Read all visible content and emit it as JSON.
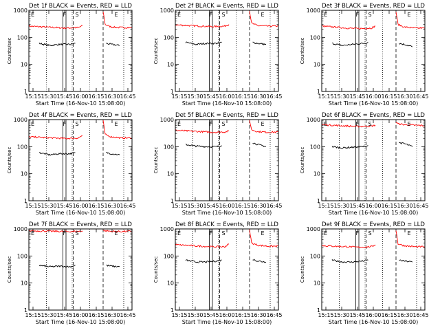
{
  "colors": {
    "events": "#000000",
    "lld": "#ff0000",
    "axis": "#000000",
    "background": "#ffffff"
  },
  "chart_data": [
    {
      "type": "line",
      "title": "Det 1f BLACK = Events, RED = LLD",
      "xlabel": "Start Time (16-Nov-10 15:08:00)",
      "ylabel": "Counts/sec",
      "yscale": "log",
      "ylim": [
        1,
        1000
      ],
      "yticks": [
        "1",
        "10",
        "100",
        "1000"
      ],
      "xlim_minutes": [
        0,
        100
      ],
      "xticks": [
        "15:15",
        "15:30",
        "15:45",
        "16:00",
        "16:15",
        "16:30",
        "16:45"
      ],
      "markers": [
        "E",
        "F",
        "S",
        "E"
      ],
      "series": [
        {
          "name": "LLD (red)",
          "segments": [
            {
              "t": [
                0,
                25,
                35,
                48,
                52
              ],
              "v": [
                260,
                230,
                220,
                230,
                270
              ]
            },
            {
              "t": [
                72,
                74,
                80,
                90,
                100
              ],
              "v": [
                900,
                300,
                240,
                230,
                230
              ]
            }
          ]
        },
        {
          "name": "Events (black)",
          "segments": [
            {
              "t": [
                10,
                20,
                30,
                40,
                45
              ],
              "v": [
                60,
                50,
                55,
                55,
                60
              ]
            },
            {
              "t": [
                75,
                80,
                88
              ],
              "v": [
                60,
                55,
                50
              ]
            }
          ]
        }
      ]
    },
    {
      "type": "line",
      "title": "Det 2f BLACK = Events, RED = LLD",
      "xlabel": "Start Time (16-Nov-10 15:08:00)",
      "ylabel": "Counts/sec",
      "yscale": "log",
      "ylim": [
        1,
        1000
      ],
      "yticks": [
        "1",
        "10",
        "100",
        "1000"
      ],
      "xlim_minutes": [
        0,
        100
      ],
      "xticks": [
        "15:15",
        "15:30",
        "15:45",
        "16:00",
        "16:15",
        "16:30",
        "16:45"
      ],
      "markers": [
        "E",
        "F",
        "S",
        "E"
      ],
      "series": [
        {
          "name": "LLD (red)",
          "segments": [
            {
              "t": [
                0,
                25,
                35,
                48,
                52
              ],
              "v": [
                290,
                260,
                250,
                260,
                300
              ]
            },
            {
              "t": [
                72,
                74,
                80,
                90,
                100
              ],
              "v": [
                950,
                330,
                270,
                260,
                260
              ]
            }
          ]
        },
        {
          "name": "Events (black)",
          "segments": [
            {
              "t": [
                10,
                20,
                30,
                40,
                45
              ],
              "v": [
                65,
                55,
                60,
                60,
                65
              ]
            },
            {
              "t": [
                75,
                80,
                88
              ],
              "v": [
                65,
                60,
                55
              ]
            }
          ]
        }
      ]
    },
    {
      "type": "line",
      "title": "Det 3f BLACK = Events, RED = LLD",
      "xlabel": "Start Time (16-Nov-10 15:08:00)",
      "ylabel": "Counts/sec",
      "yscale": "log",
      "ylim": [
        1,
        1000
      ],
      "yticks": [
        "1",
        "10",
        "100",
        "1000"
      ],
      "xlim_minutes": [
        0,
        100
      ],
      "xticks": [
        "15:15",
        "15:30",
        "15:45",
        "16:00",
        "16:15",
        "16:30",
        "16:45"
      ],
      "markers": [
        "E",
        "F",
        "S",
        "E"
      ],
      "series": [
        {
          "name": "LLD (red)",
          "segments": [
            {
              "t": [
                0,
                25,
                35,
                48,
                52
              ],
              "v": [
                260,
                220,
                210,
                220,
                260
              ]
            },
            {
              "t": [
                72,
                74,
                80,
                90,
                100
              ],
              "v": [
                900,
                300,
                240,
                220,
                220
              ]
            }
          ]
        },
        {
          "name": "Events (black)",
          "segments": [
            {
              "t": [
                10,
                20,
                30,
                40,
                45
              ],
              "v": [
                60,
                50,
                55,
                60,
                65
              ]
            },
            {
              "t": [
                75,
                80,
                88
              ],
              "v": [
                60,
                55,
                45
              ]
            }
          ]
        }
      ]
    },
    {
      "type": "line",
      "title": "Det 4f BLACK = Events, RED = LLD",
      "xlabel": "Start Time (16-Nov-10 15:08:00)",
      "ylabel": "Counts/sec",
      "yscale": "log",
      "ylim": [
        1,
        1000
      ],
      "yticks": [
        "1",
        "10",
        "100",
        "1000"
      ],
      "xlim_minutes": [
        0,
        100
      ],
      "xticks": [
        "15:15",
        "15:30",
        "15:45",
        "16:00",
        "16:15",
        "16:30",
        "16:45"
      ],
      "markers": [
        "E",
        "F",
        "S",
        "E"
      ],
      "series": [
        {
          "name": "LLD (red)",
          "segments": [
            {
              "t": [
                0,
                25,
                35,
                48,
                52
              ],
              "v": [
                230,
                210,
                200,
                210,
                260
              ]
            },
            {
              "t": [
                72,
                74,
                80,
                90,
                100
              ],
              "v": [
                900,
                280,
                230,
                210,
                210
              ]
            }
          ]
        },
        {
          "name": "Events (black)",
          "segments": [
            {
              "t": [
                10,
                20,
                30,
                40,
                45
              ],
              "v": [
                60,
                50,
                55,
                55,
                60
              ]
            },
            {
              "t": [
                75,
                80,
                88
              ],
              "v": [
                60,
                55,
                50
              ]
            }
          ]
        }
      ]
    },
    {
      "type": "line",
      "title": "Det 5f BLACK = Events, RED = LLD",
      "xlabel": "Start Time (16-Nov-10 15:08:00)",
      "ylabel": "Counts/sec",
      "yscale": "log",
      "ylim": [
        1,
        1000
      ],
      "yticks": [
        "1",
        "10",
        "100",
        "1000"
      ],
      "xlim_minutes": [
        0,
        100
      ],
      "xticks": [
        "15:15",
        "15:30",
        "15:45",
        "16:00",
        "16:15",
        "16:30",
        "16:45"
      ],
      "markers": [
        "E",
        "F",
        "S",
        "E"
      ],
      "series": [
        {
          "name": "LLD (red)",
          "segments": [
            {
              "t": [
                0,
                25,
                35,
                48,
                52
              ],
              "v": [
                400,
                360,
                340,
                350,
                380
              ]
            },
            {
              "t": [
                72,
                74,
                80,
                90,
                100
              ],
              "v": [
                950,
                420,
                360,
                340,
                350
              ]
            }
          ]
        },
        {
          "name": "Events (black)",
          "segments": [
            {
              "t": [
                10,
                20,
                30,
                40,
                45
              ],
              "v": [
                120,
                105,
                100,
                100,
                110
              ]
            },
            {
              "t": [
                75,
                80,
                88
              ],
              "v": [
                140,
                120,
                100
              ]
            }
          ]
        }
      ]
    },
    {
      "type": "line",
      "title": "Det 6f BLACK = Events, RED = LLD",
      "xlabel": "Start Time (16-Nov-10 15:08:00)",
      "ylabel": "Counts/sec",
      "yscale": "log",
      "ylim": [
        1,
        1000
      ],
      "yticks": [
        "1",
        "10",
        "100",
        "1000"
      ],
      "xlim_minutes": [
        0,
        100
      ],
      "xticks": [
        "15:15",
        "15:30",
        "15:45",
        "16:00",
        "16:15",
        "16:30",
        "16:45"
      ],
      "markers": [
        "E",
        "F",
        "S",
        "E"
      ],
      "series": [
        {
          "name": "LLD (red)",
          "segments": [
            {
              "t": [
                0,
                25,
                35,
                48,
                52
              ],
              "v": [
                650,
                580,
                560,
                570,
                620
              ]
            },
            {
              "t": [
                72,
                74,
                80,
                90,
                100
              ],
              "v": [
                800,
                700,
                650,
                620,
                600
              ]
            }
          ]
        },
        {
          "name": "Events (black)",
          "segments": [
            {
              "t": [
                10,
                20,
                30,
                40,
                45
              ],
              "v": [
                100,
                90,
                95,
                100,
                110
              ]
            },
            {
              "t": [
                75,
                80,
                88
              ],
              "v": [
                140,
                130,
                100
              ]
            }
          ]
        }
      ]
    },
    {
      "type": "line",
      "title": "Det 7f BLACK = Events, RED = LLD",
      "xlabel": "Start Time (16-Nov-10 15:08:00)",
      "ylabel": "Counts/sec",
      "yscale": "log",
      "ylim": [
        1,
        1000
      ],
      "yticks": [
        "1",
        "10",
        "100",
        "1000"
      ],
      "xlim_minutes": [
        0,
        100
      ],
      "xticks": [
        "15:15",
        "15:30",
        "15:45",
        "16:00",
        "16:15",
        "16:30",
        "16:45"
      ],
      "markers": [
        "E",
        "F",
        "S",
        "E"
      ],
      "series": [
        {
          "name": "LLD (red)",
          "segments": [
            {
              "t": [
                0,
                25,
                35,
                48,
                52
              ],
              "v": [
                850,
                820,
                800,
                810,
                850
              ]
            },
            {
              "t": [
                72,
                74,
                80,
                90,
                100
              ],
              "v": [
                900,
                850,
                820,
                800,
                820
              ]
            }
          ]
        },
        {
          "name": "Events (black)",
          "segments": [
            {
              "t": [
                10,
                20,
                30,
                40,
                45
              ],
              "v": [
                45,
                40,
                42,
                40,
                45
              ]
            },
            {
              "t": [
                75,
                80,
                88
              ],
              "v": [
                45,
                42,
                40
              ]
            }
          ]
        }
      ]
    },
    {
      "type": "line",
      "title": "Det 8f BLACK = Events, RED = LLD",
      "xlabel": "Start Time (16-Nov-10 15:08:00)",
      "ylabel": "Counts/sec",
      "yscale": "log",
      "ylim": [
        1,
        1000
      ],
      "yticks": [
        "1",
        "10",
        "100",
        "1000"
      ],
      "xlim_minutes": [
        0,
        100
      ],
      "xticks": [
        "15:15",
        "15:30",
        "15:45",
        "16:00",
        "16:15",
        "16:30",
        "16:45"
      ],
      "markers": [
        "E",
        "F",
        "S",
        "E"
      ],
      "series": [
        {
          "name": "LLD (red)",
          "segments": [
            {
              "t": [
                0,
                25,
                35,
                48,
                52
              ],
              "v": [
                260,
                230,
                220,
                220,
                280
              ]
            },
            {
              "t": [
                72,
                74,
                80,
                90,
                100
              ],
              "v": [
                950,
                300,
                250,
                230,
                230
              ]
            }
          ]
        },
        {
          "name": "Events (black)",
          "segments": [
            {
              "t": [
                10,
                20,
                30,
                40,
                45
              ],
              "v": [
                70,
                60,
                60,
                65,
                70
              ]
            },
            {
              "t": [
                75,
                80,
                88
              ],
              "v": [
                75,
                65,
                60
              ]
            }
          ]
        }
      ]
    },
    {
      "type": "line",
      "title": "Det 9f BLACK = Events, RED = LLD",
      "xlabel": "Start Time (16-Nov-10 15:08:00)",
      "ylabel": "Counts/sec",
      "yscale": "log",
      "ylim": [
        1,
        1000
      ],
      "yticks": [
        "1",
        "10",
        "100",
        "1000"
      ],
      "xlim_minutes": [
        0,
        100
      ],
      "xticks": [
        "15:15",
        "15:30",
        "15:45",
        "16:00",
        "16:15",
        "16:30",
        "16:45"
      ],
      "markers": [
        "E",
        "F",
        "S",
        "E"
      ],
      "series": [
        {
          "name": "LLD (red)",
          "segments": [
            {
              "t": [
                0,
                25,
                35,
                48,
                52
              ],
              "v": [
                240,
                220,
                210,
                220,
                260
              ]
            },
            {
              "t": [
                72,
                74,
                80,
                90,
                100
              ],
              "v": [
                900,
                280,
                240,
                220,
                220
              ]
            }
          ]
        },
        {
          "name": "Events (black)",
          "segments": [
            {
              "t": [
                10,
                20,
                30,
                40,
                45
              ],
              "v": [
                70,
                60,
                60,
                65,
                70
              ]
            },
            {
              "t": [
                75,
                80,
                88
              ],
              "v": [
                70,
                65,
                60
              ]
            }
          ]
        }
      ]
    }
  ]
}
